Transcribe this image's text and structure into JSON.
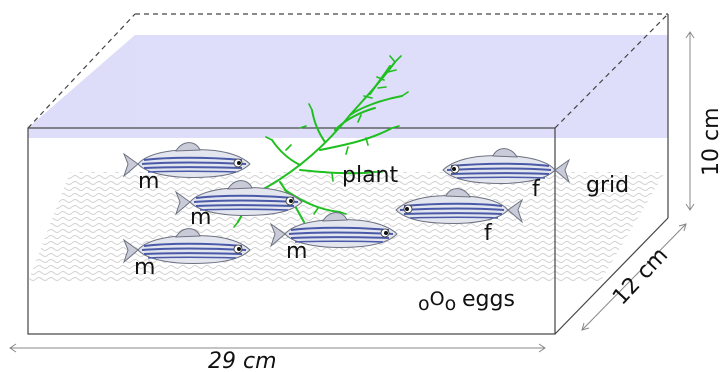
{
  "labels": {
    "plant": "plant",
    "grid": "grid",
    "eggs": "eggs",
    "egg_glyph": "oOo",
    "male": "m",
    "female": "f"
  },
  "dimensions": {
    "length": "29 cm",
    "height": "10 cm",
    "depth": "12 cm"
  },
  "fish": [
    {
      "sex_label": "m"
    },
    {
      "sex_label": "m"
    },
    {
      "sex_label": "m"
    },
    {
      "sex_label": "m"
    },
    {
      "sex_label": "f"
    },
    {
      "sex_label": "f"
    }
  ],
  "colors": {
    "water_surface": "#dcdcfa",
    "plant": "#22cc22",
    "fish_stripe": "#4a5aa8",
    "fish_body": "#d9dde8",
    "grid": "#cccccc"
  }
}
